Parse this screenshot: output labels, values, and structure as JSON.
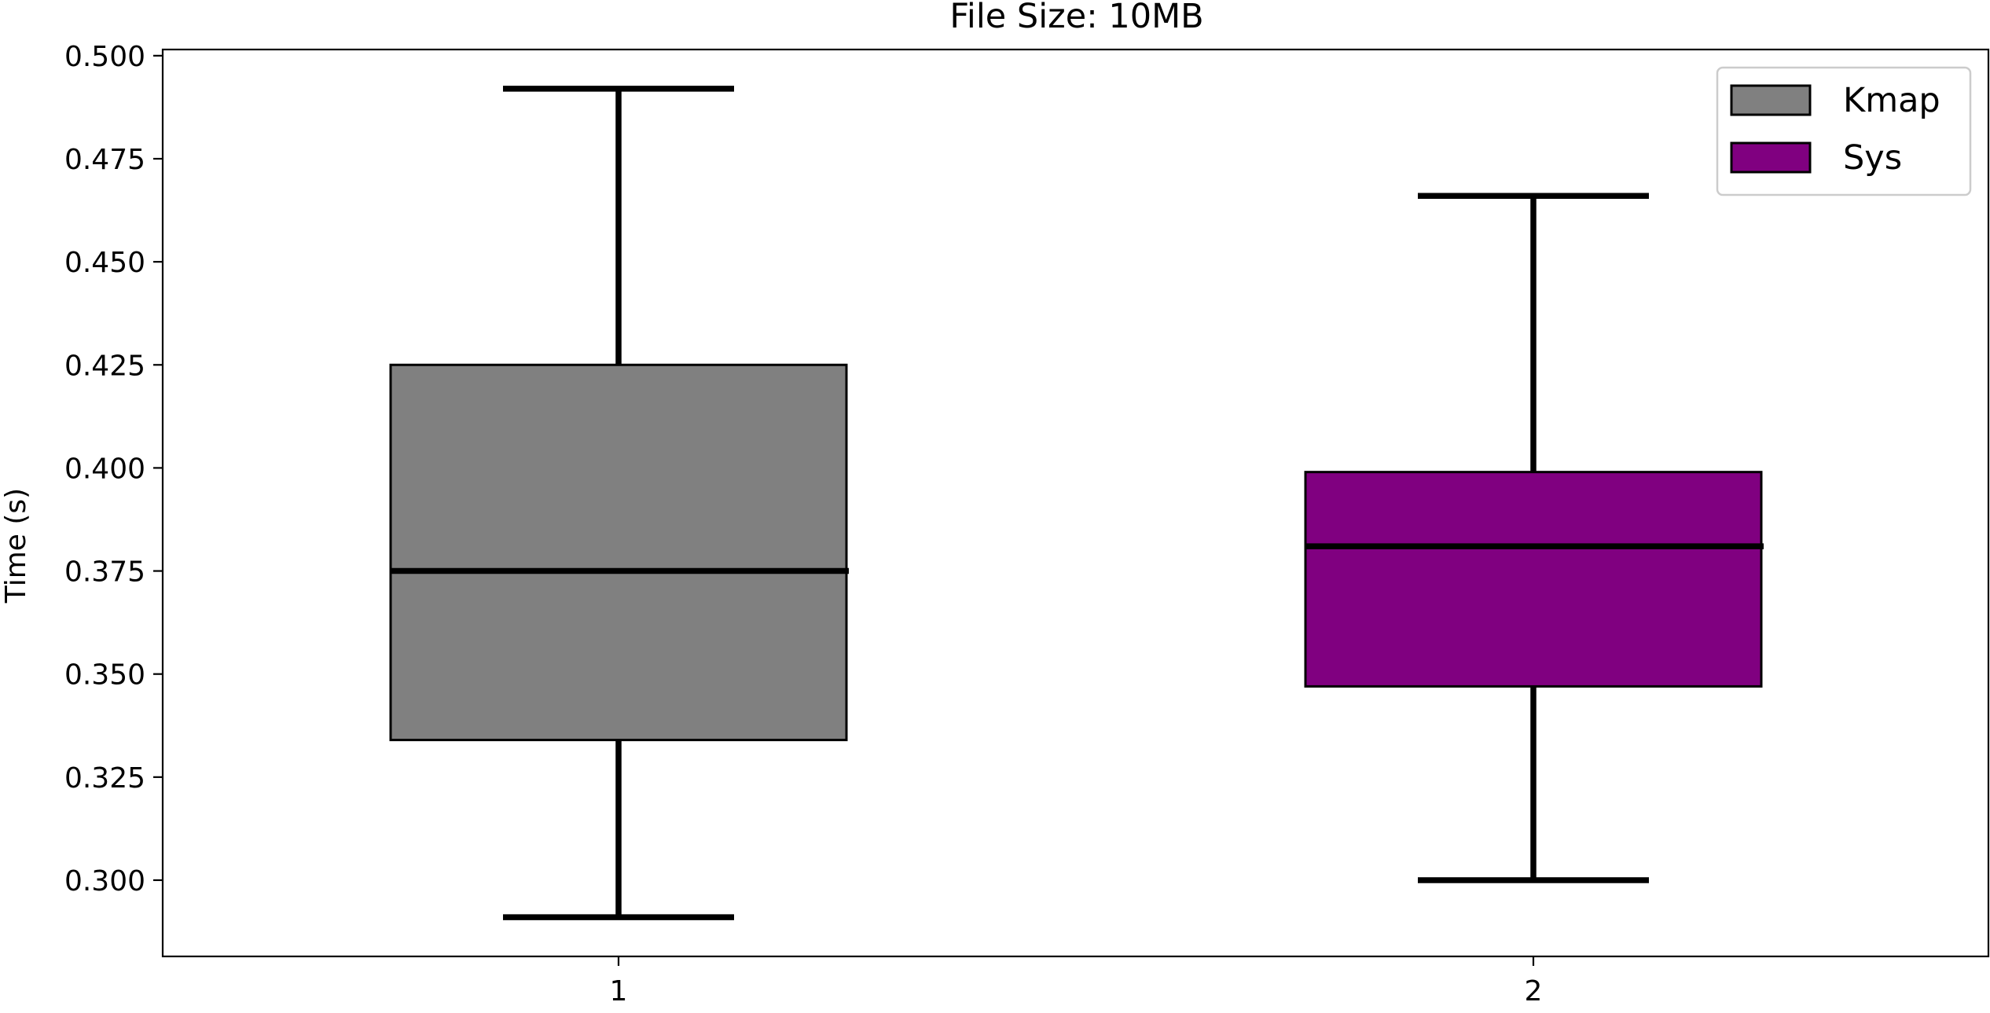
{
  "chart_data": {
    "type": "box",
    "title": "File Size: 10MB",
    "xlabel": "",
    "ylabel": "Time (s)",
    "ylim": [
      0.2815,
      0.5015
    ],
    "yticks": [
      "0.300",
      "0.325",
      "0.350",
      "0.375",
      "0.400",
      "0.425",
      "0.450",
      "0.475",
      "0.500"
    ],
    "categories": [
      "1",
      "2"
    ],
    "series": [
      {
        "name": "Kmap",
        "color": "#808080",
        "whisker_low": 0.291,
        "q1": 0.334,
        "median": 0.375,
        "q3": 0.425,
        "whisker_high": 0.492
      },
      {
        "name": "Sys",
        "color": "#800080",
        "whisker_low": 0.3,
        "q1": 0.347,
        "median": 0.381,
        "q3": 0.399,
        "whisker_high": 0.466
      }
    ],
    "legend": {
      "position": "upper right",
      "entries": [
        "Kmap",
        "Sys"
      ]
    },
    "grid": false
  }
}
